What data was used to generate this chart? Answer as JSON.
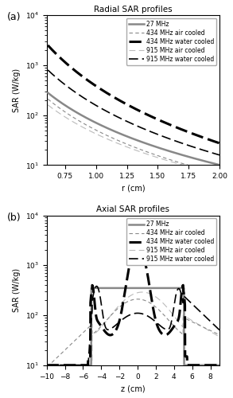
{
  "title_a": "Radial SAR profiles",
  "title_b": "Axial SAR profiles",
  "xlabel_a": "r (cm)",
  "xlabel_b": "z (cm)",
  "ylabel": "SAR (W/kg)",
  "label_a": "(a)",
  "label_b": "(b)",
  "legend_entries": [
    "27 MHz",
    "434 MHz air cooled",
    "434 MHz water cooled",
    "915 MHz air cooled",
    "915 MHz water cooled"
  ],
  "radial_xlim": [
    0.6,
    2.0
  ],
  "radial_ylim": [
    10,
    10000
  ],
  "axial_xlim": [
    -10,
    9
  ],
  "axial_ylim": [
    10,
    10000
  ],
  "radial_xticks": [
    0.75,
    1.0,
    1.25,
    1.5,
    1.75,
    2.0
  ],
  "axial_xticks": [
    -10,
    -8,
    -6,
    -4,
    -2,
    0,
    2,
    4,
    6,
    8
  ]
}
